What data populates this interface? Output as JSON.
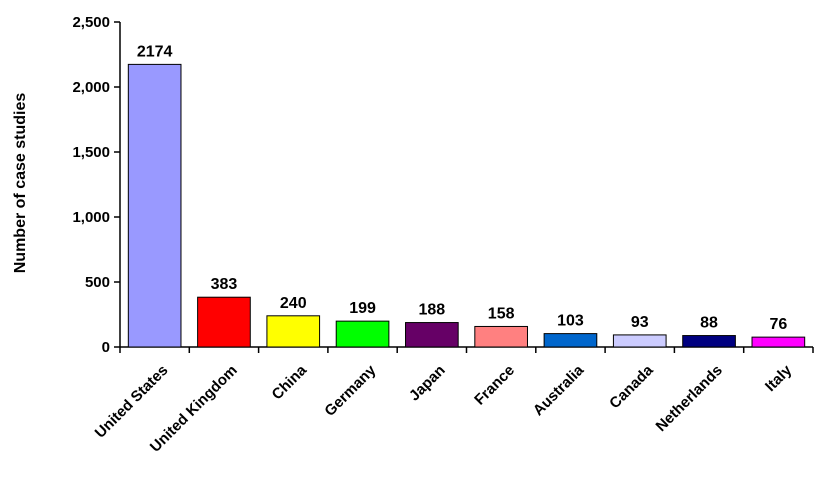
{
  "chart_data": {
    "type": "bar",
    "title": "",
    "xlabel": "",
    "ylabel": "Number of case studies",
    "ylim": [
      0,
      2500
    ],
    "yticks": [
      0,
      500,
      1000,
      1500,
      2000,
      2500
    ],
    "ytick_labels": [
      "0",
      "500",
      "1,000",
      "1,500",
      "2,000",
      "2,500"
    ],
    "grid": false,
    "legend": "none",
    "categories": [
      "United States",
      "United Kingdom",
      "China",
      "Germany",
      "Japan",
      "France",
      "Australia",
      "Canada",
      "Netherlands",
      "Italy"
    ],
    "values": [
      2174,
      383,
      240,
      199,
      188,
      158,
      103,
      93,
      88,
      76
    ],
    "data_labels": [
      "2174",
      "383",
      "240",
      "199",
      "188",
      "158",
      "103",
      "93",
      "88",
      "76"
    ],
    "colors": [
      "#9999FF",
      "#FF0000",
      "#FFFF00",
      "#00FF00",
      "#660066",
      "#FF8080",
      "#0066CC",
      "#CCCCFF",
      "#000080",
      "#FF00FF"
    ]
  }
}
